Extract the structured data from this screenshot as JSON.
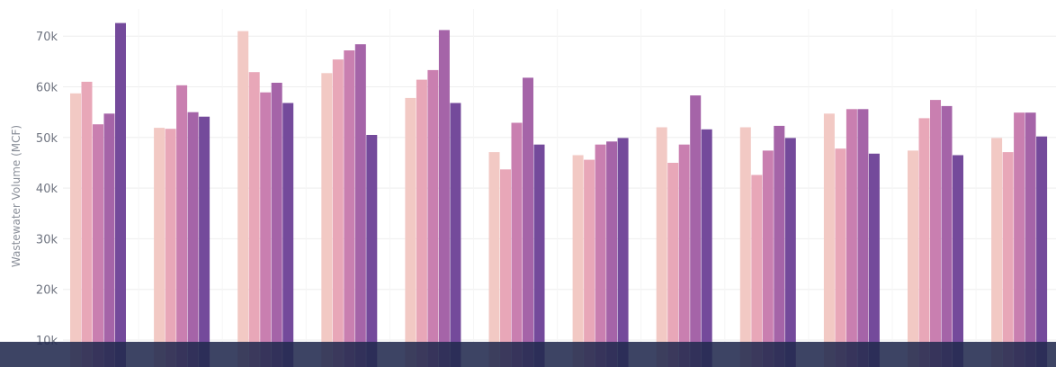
{
  "chart_data": {
    "type": "bar",
    "title": "",
    "xlabel": "",
    "ylabel": "Wastewater Volume (MCF)",
    "ylim": [
      8000,
      75000
    ],
    "yticks": [
      10000,
      20000,
      30000,
      40000,
      50000,
      60000,
      70000
    ],
    "ytick_labels": [
      "10k",
      "20k",
      "30k",
      "40k",
      "50k",
      "60k",
      "70k"
    ],
    "grid": true,
    "colors": [
      "#f2c9c4",
      "#e8a7b8",
      "#c97fb0",
      "#a564a8",
      "#744a9b"
    ],
    "series": [
      {
        "values": [
          58700,
          51900,
          71000,
          62700,
          57800,
          47100,
          46500,
          52000,
          52000,
          54700,
          47400,
          49900
        ]
      },
      {
        "values": [
          61000,
          51700,
          62900,
          65400,
          61400,
          43700,
          45600,
          45000,
          42600,
          47800,
          53800,
          47100
        ]
      },
      {
        "values": [
          52600,
          60300,
          58900,
          67200,
          63300,
          52900,
          48600,
          48600,
          47400,
          55600,
          57400,
          54900
        ]
      },
      {
        "values": [
          54700,
          55000,
          60800,
          68400,
          71200,
          61800,
          49200,
          58300,
          52300,
          55600,
          56200,
          54900
        ]
      },
      {
        "values": [
          72600,
          54100,
          56800,
          50500,
          56800,
          48600,
          49900,
          51600,
          49900,
          46800,
          46500,
          50200
        ]
      }
    ]
  }
}
